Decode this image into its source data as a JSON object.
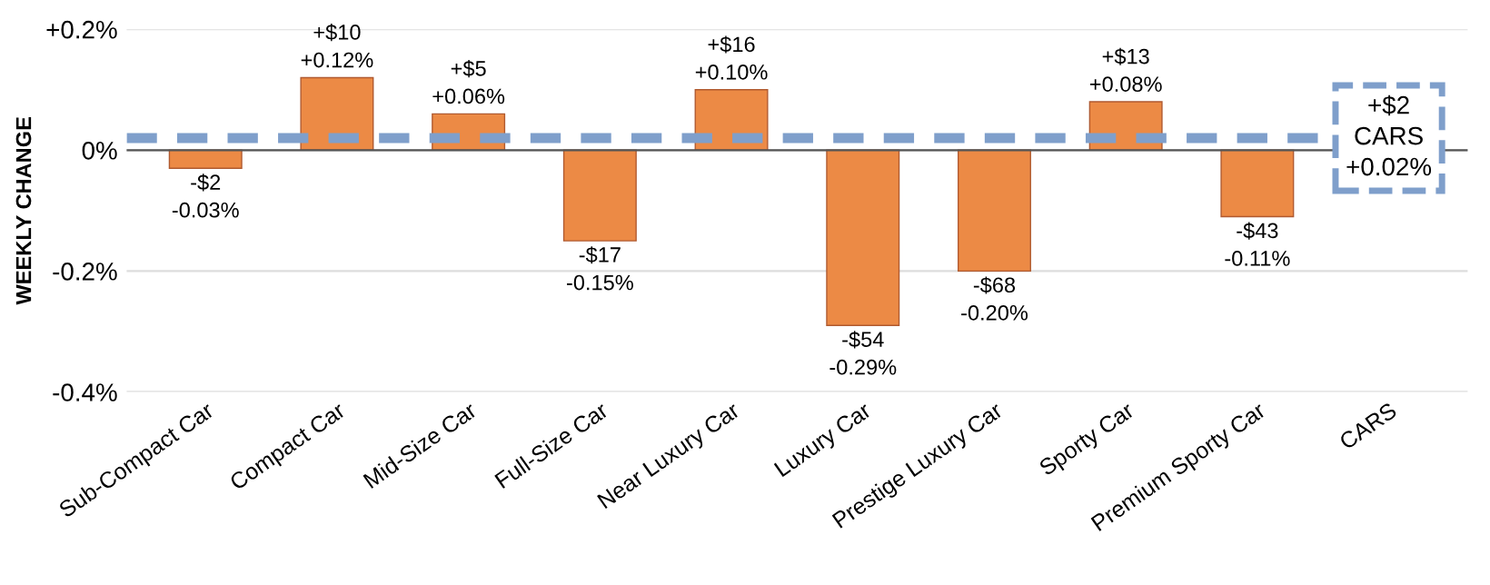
{
  "chart_data": {
    "type": "bar",
    "ylabel": "WEEKLY CHANGE",
    "categories": [
      "Sub-Compact Car",
      "Compact Car",
      "Mid-Size Car",
      "Full-Size Car",
      "Near Luxury Car",
      "Luxury Car",
      "Prestige Luxury Car",
      "Sporty Car",
      "Premium Sporty Car",
      "CARS"
    ],
    "values": [
      -0.03,
      0.12,
      0.06,
      -0.15,
      0.1,
      -0.29,
      -0.2,
      0.08,
      -0.11,
      null
    ],
    "value_labels": [
      "-$2\n-0.03%",
      "+$10\n+0.12%",
      "+$5\n+0.06%",
      "-$17\n-0.15%",
      "+$16\n+0.10%",
      "-$54\n-0.29%",
      "-$68\n-0.20%",
      "+$13\n+0.08%",
      "-$43\n-0.11%",
      null
    ],
    "color": "#ec8a45",
    "ylim": [
      -0.4,
      0.2
    ],
    "yticks": [
      {
        "value": 0.2,
        "label": "+0.2%"
      },
      {
        "value": 0,
        "label": "0%"
      },
      {
        "value": -0.2,
        "label": "-0.2%"
      },
      {
        "value": -0.4,
        "label": "-0.4%"
      }
    ],
    "grid": "y",
    "ref_lines": [
      {
        "axis": "y",
        "value": 0.02,
        "label": "+$2\nCARS\n+0.02%",
        "color": "#7f9fcb",
        "line_style": "dashed"
      }
    ]
  }
}
